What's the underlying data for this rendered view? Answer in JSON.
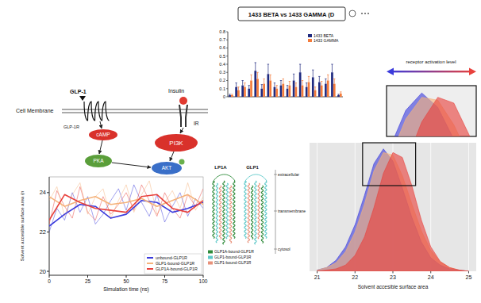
{
  "diagram": {
    "membrane_label": "Cell Membrane",
    "nodes": {
      "ligand": "GLP-1",
      "receptor": "GLP-1R",
      "insulin": "Insulin",
      "insulin_receptor": "IR",
      "camp": "cAMP",
      "pka": "PKA",
      "pi3k": "PI3K",
      "akt": "AKT"
    }
  },
  "chart_data": [
    {
      "type": "bar",
      "title": "1433 BETA vs 1433 GAMMA (D",
      "categories": [
        null,
        null,
        null,
        null,
        null,
        null,
        null,
        null,
        null,
        null,
        null,
        null,
        null,
        null,
        null,
        null,
        null,
        null
      ],
      "series": [
        {
          "name": "1433 BETA",
          "color": "#1f2a80",
          "values": [
            0.02,
            0.12,
            0.14,
            0.1,
            0.32,
            0.1,
            0.28,
            0.12,
            0.14,
            0.1,
            0.2,
            0.3,
            0.12,
            0.24,
            0.18,
            0.16,
            0.3,
            0.02
          ],
          "errors": [
            0.01,
            0.05,
            0.06,
            0.04,
            0.1,
            0.05,
            0.12,
            0.05,
            0.06,
            0.04,
            0.08,
            0.1,
            0.05,
            0.09,
            0.07,
            0.06,
            0.1,
            0.01
          ]
        },
        {
          "name": "1433 GAMMA",
          "color": "#f47b3b",
          "values": [
            0.02,
            0.08,
            0.12,
            0.2,
            0.22,
            0.16,
            0.2,
            0.1,
            0.16,
            0.14,
            0.12,
            0.14,
            0.18,
            0.08,
            0.14,
            0.2,
            0.16,
            0.04
          ],
          "errors": [
            0.01,
            0.04,
            0.05,
            0.07,
            0.08,
            0.06,
            0.07,
            0.04,
            0.06,
            0.05,
            0.05,
            0.06,
            0.07,
            0.04,
            0.05,
            0.07,
            0.06,
            0.02
          ]
        }
      ],
      "ylim": [
        0,
        0.8
      ],
      "yticks": [
        0,
        0.1,
        0.2,
        0.3,
        0.4,
        0.5,
        0.6,
        0.7,
        0.8
      ],
      "legend": "upper right",
      "grid": false,
      "tick_labels": "y"
    },
    {
      "type": "line",
      "y_label": "Solvent accesible surface area (n",
      "x_label": "Simulation time (ns)",
      "x": [
        0,
        5,
        10,
        15,
        20,
        25,
        30,
        35,
        40,
        45,
        50,
        55,
        60,
        65,
        70,
        75,
        80,
        85,
        90,
        95,
        100
      ],
      "trend_x": [
        0,
        10,
        20,
        30,
        40,
        50,
        60,
        70,
        80,
        90,
        100
      ],
      "series": [
        {
          "name": "unbound-GLP1R",
          "color": "#3b3bdc",
          "values": [
            22.0,
            23.2,
            22.6,
            24.0,
            23.0,
            23.8,
            22.4,
            22.9,
            23.6,
            24.2,
            23.1,
            24.4,
            23.5,
            22.8,
            23.9,
            22.5,
            23.3,
            24.0,
            22.8,
            23.7,
            23.2
          ],
          "trend": [
            22.3,
            22.9,
            23.4,
            23.3,
            22.7,
            22.9,
            23.6,
            23.5,
            23.0,
            23.2,
            23.5
          ]
        },
        {
          "name": "GLP1-bound-GLP1R",
          "color": "#f5b27a",
          "values": [
            23.6,
            24.3,
            22.8,
            23.9,
            24.5,
            22.9,
            23.8,
            24.2,
            22.7,
            23.6,
            24.4,
            23.0,
            23.9,
            24.6,
            22.9,
            23.5,
            24.1,
            23.2,
            24.5,
            23.1,
            23.8
          ],
          "trend": [
            23.8,
            23.3,
            23.6,
            23.8,
            23.4,
            23.5,
            23.7,
            23.3,
            23.6,
            23.9,
            23.4
          ]
        },
        {
          "name": "GLP1A-bound-GLP1R",
          "color": "#e8413c",
          "values": [
            22.4,
            24.1,
            23.3,
            22.7,
            24.3,
            23.0,
            22.6,
            23.8,
            22.9,
            23.4,
            24.0,
            23.1,
            24.4,
            23.6,
            22.8,
            24.0,
            23.2,
            22.7,
            23.9,
            23.3,
            24.2
          ],
          "trend": [
            22.6,
            23.9,
            23.5,
            23.2,
            23.1,
            23.0,
            23.8,
            23.9,
            23.2,
            23.0,
            23.6
          ]
        }
      ],
      "xlim": [
        0,
        100
      ],
      "xticks": [
        0,
        25,
        50,
        75,
        100
      ],
      "ylim": [
        19.8,
        24.8
      ],
      "yticks": [
        20,
        22,
        24
      ],
      "legend": "lower right",
      "grid": false
    },
    {
      "type": "area",
      "x_label": "Solvent accesible surface area",
      "x": [
        21,
        21.25,
        21.5,
        21.75,
        22,
        22.25,
        22.5,
        22.75,
        23,
        23.25,
        23.5,
        23.75,
        24,
        24.25,
        24.5,
        24.75,
        25
      ],
      "series": [
        {
          "name": "unbound-GLP1R",
          "color": "#3b3bdc",
          "values": [
            0.01,
            0.03,
            0.09,
            0.2,
            0.38,
            0.62,
            0.88,
            1.0,
            0.9,
            0.68,
            0.44,
            0.24,
            0.11,
            0.05,
            0.02,
            0.01,
            0
          ]
        },
        {
          "name": "GLP1-bound-GLP1R",
          "color": "#f5b27a",
          "values": [
            0.01,
            0.03,
            0.07,
            0.16,
            0.32,
            0.55,
            0.82,
            0.97,
            0.95,
            0.78,
            0.55,
            0.33,
            0.17,
            0.08,
            0.03,
            0.01,
            0
          ]
        },
        {
          "name": "GLP1A-bound-GLP1R",
          "color": "#e8413c",
          "values": [
            0,
            0.01,
            0.02,
            0.05,
            0.13,
            0.28,
            0.52,
            0.8,
            0.97,
            0.93,
            0.7,
            0.42,
            0.2,
            0.08,
            0.03,
            0.01,
            0
          ]
        }
      ],
      "xlim": [
        20.8,
        25.2
      ],
      "xticks": [
        21,
        22,
        23,
        24,
        25
      ],
      "ylim": [
        0,
        1.05
      ],
      "grid": true,
      "tick_labels": "x"
    },
    {
      "type": "area",
      "annotation": "receptor activation level",
      "xlim": [
        22.2,
        23.6
      ],
      "ylim": [
        0.7,
        1.05
      ],
      "tick_labels": false
    }
  ],
  "structure": {
    "labels": [
      "LP1A",
      "GLP1"
    ],
    "legend": [
      {
        "name": "GLP1A-bound-GLP1R",
        "color": "#2e8b3a"
      },
      {
        "name": "GLP1-bound-GLP1R",
        "color": "#5cc8c8"
      },
      {
        "name": "GLP1-bound-GLP1R",
        "color": "#e8917a"
      }
    ],
    "regions": [
      "extracellular",
      "transmembrane",
      "cytosol"
    ]
  }
}
